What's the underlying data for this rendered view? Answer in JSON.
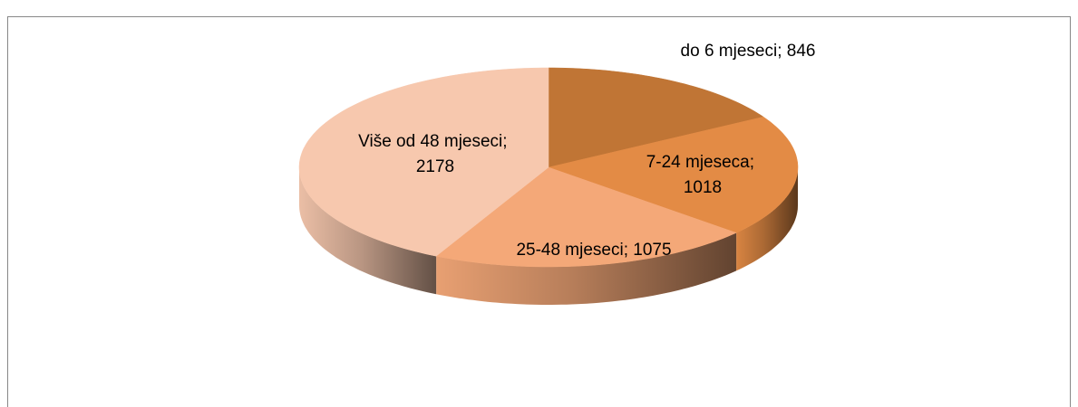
{
  "chart_data": {
    "type": "pie3d",
    "categories": [
      "do 6 mjeseci",
      "7-24 mjeseca",
      "25-48 mjeseci",
      "Više od 48 mjeseci"
    ],
    "values": [
      846,
      1018,
      1075,
      2178
    ],
    "colors": [
      "#c07535",
      "#e38b45",
      "#f4a878",
      "#f7c8ae"
    ],
    "label_separator": "; "
  }
}
